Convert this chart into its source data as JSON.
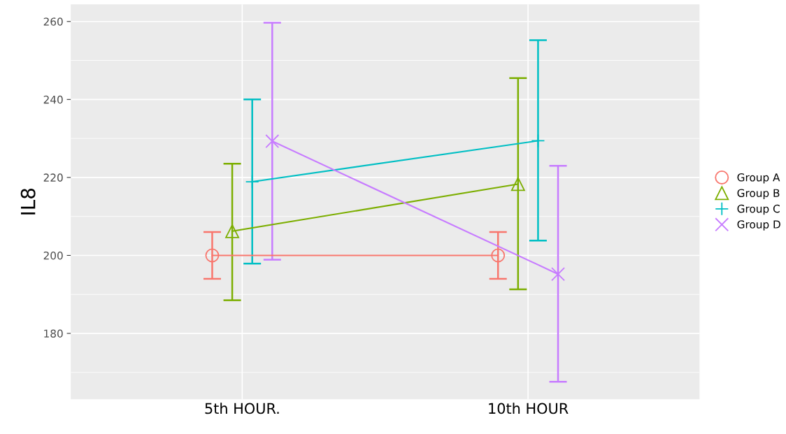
{
  "chart_data": {
    "type": "line",
    "ylabel": "IL8",
    "categories": [
      "5th HOUR.",
      "10th HOUR"
    ],
    "ylim": [
      163.1,
      264.4
    ],
    "yticks": [
      180,
      200,
      220,
      240,
      260
    ],
    "grid": true,
    "legend": "right",
    "series": [
      {
        "name": "Group A",
        "color": "#f8766d",
        "marker": "circle",
        "values": [
          200,
          200
        ],
        "errors": [
          [
            194,
            206
          ],
          [
            194,
            206
          ]
        ]
      },
      {
        "name": "Group B",
        "color": "#7cae00",
        "marker": "triangle",
        "values": [
          206.2,
          218.3
        ],
        "errors": [
          [
            188.5,
            223.5
          ],
          [
            191.3,
            245.5
          ]
        ]
      },
      {
        "name": "Group C",
        "color": "#00bfc4",
        "marker": "plus",
        "values": [
          218.9,
          229.4
        ],
        "errors": [
          [
            197.9,
            240
          ],
          [
            203.8,
            255.2
          ]
        ]
      },
      {
        "name": "Group D",
        "color": "#c77cff",
        "marker": "x",
        "values": [
          229.3,
          195.2
        ],
        "errors": [
          [
            198.9,
            259.7
          ],
          [
            167.6,
            223
          ]
        ]
      }
    ]
  }
}
